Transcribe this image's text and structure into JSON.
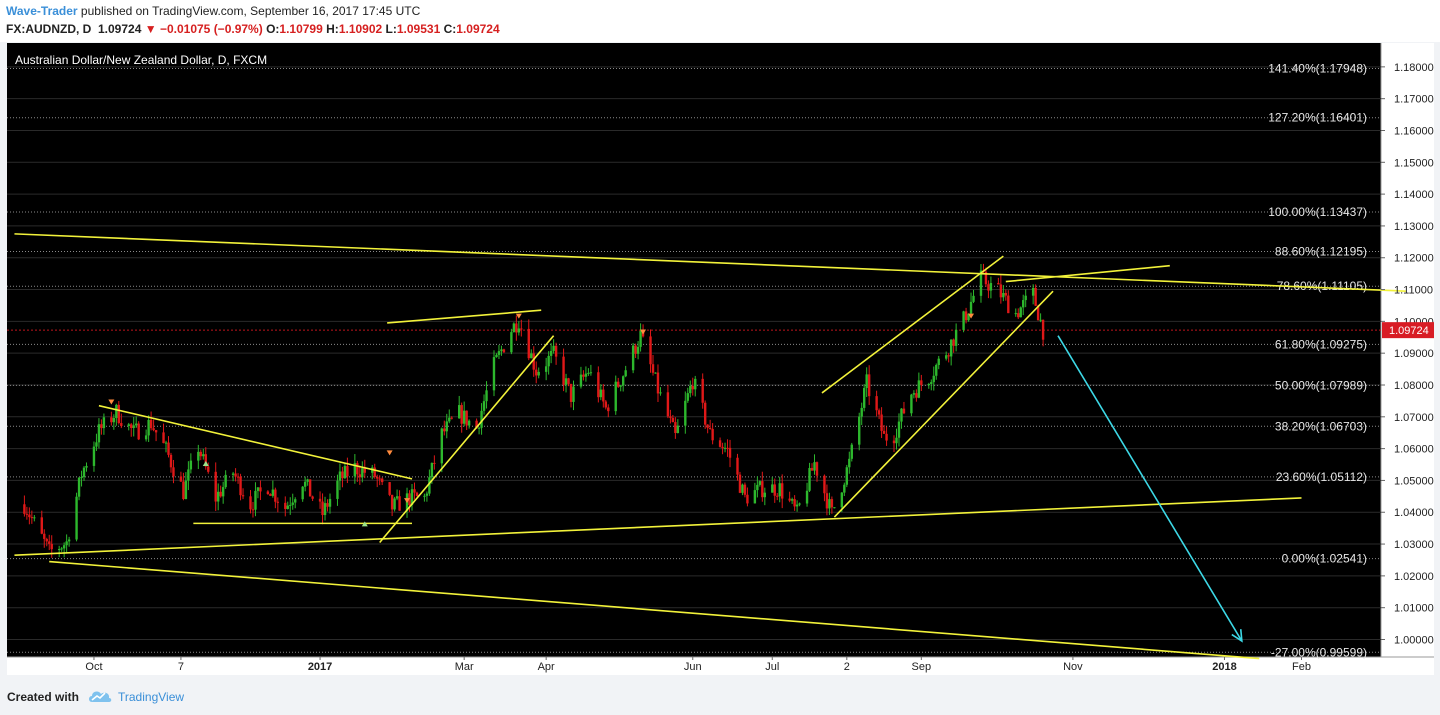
{
  "header": {
    "author": "Wave-Trader",
    "published_text": " published on TradingView.com, September 16, 2017 17:45 UTC",
    "symbol": "FX:AUDNZD, D",
    "last": "1.09724",
    "change_arrow": "▼",
    "change": "−0.01075 (−0.97%)",
    "o_label": "O:",
    "o_val": "1.10799",
    "h_label": "H:",
    "h_val": "1.10902",
    "l_label": "L:",
    "l_val": "1.09531",
    "c_label": "C:",
    "c_val": "1.09724"
  },
  "footer": {
    "created_with": "Created with",
    "brand": "TradingView",
    "logo_icon": "tradingview-cloud-icon"
  },
  "colors": {
    "background": "#000000",
    "up_candle": "#2db82d",
    "down_candle": "#e01818",
    "trendline": "#f2f23a",
    "projection": "#3dd8e6",
    "price_line": "#c0141c",
    "price_tag": "#d81c24"
  },
  "chart_data": {
    "type": "candlestick",
    "title": "Australian Dollar/New Zealand Dollar, D, FXCM",
    "last_price": 1.09724,
    "ylim": [
      0.9945,
      1.1875
    ],
    "grid": true,
    "y_ticks": [
      "1.18000",
      "1.17000",
      "1.16000",
      "1.15000",
      "1.14000",
      "1.13000",
      "1.12000",
      "1.11000",
      "1.10000",
      "1.09000",
      "1.08000",
      "1.07000",
      "1.06000",
      "1.05000",
      "1.04000",
      "1.03000",
      "1.02000",
      "1.01000",
      "1.00000"
    ],
    "x_ticks": [
      "Oct",
      "7",
      "2017",
      "Mar",
      "Apr",
      "Jun",
      "Jul",
      "2",
      "Sep",
      "Nov",
      "2018",
      "Feb"
    ],
    "fib_levels": [
      {
        "label": "141.40%(1.17948)",
        "value": 1.17948
      },
      {
        "label": "127.20%(1.16401)",
        "value": 1.16401
      },
      {
        "label": "100.00%(1.13437)",
        "value": 1.13437
      },
      {
        "label": "88.60%(1.12195)",
        "value": 1.12195
      },
      {
        "label": "78.60%(1.11105)",
        "value": 1.11105
      },
      {
        "label": "61.80%(1.09275)",
        "value": 1.09275
      },
      {
        "label": "50.00%(1.07989)",
        "value": 1.07989
      },
      {
        "label": "38.20%(1.06703)",
        "value": 1.06703
      },
      {
        "label": "23.60%(1.05112)",
        "value": 1.05112
      },
      {
        "label": "0.00%(1.02541)",
        "value": 1.02541
      },
      {
        "label": "-27.00%(0.99599)",
        "value": 0.99599
      }
    ],
    "price_path": [
      [
        "2016-09-05",
        1.0425
      ],
      [
        "2016-09-15",
        1.0275
      ],
      [
        "2016-09-22",
        1.0305
      ],
      [
        "2016-09-28",
        1.052
      ],
      [
        "2016-10-05",
        1.0655
      ],
      [
        "2016-10-12",
        1.0715
      ],
      [
        "2016-10-19",
        1.065
      ],
      [
        "2016-10-26",
        1.068
      ],
      [
        "2016-11-01",
        1.0595
      ],
      [
        "2016-11-08",
        1.0465
      ],
      [
        "2016-11-14",
        1.0605
      ],
      [
        "2016-11-21",
        1.0445
      ],
      [
        "2016-11-28",
        1.0525
      ],
      [
        "2016-12-05",
        1.0425
      ],
      [
        "2016-12-12",
        1.0485
      ],
      [
        "2016-12-19",
        1.0415
      ],
      [
        "2016-12-26",
        1.05
      ],
      [
        "2017-01-03",
        1.0395
      ],
      [
        "2017-01-10",
        1.0505
      ],
      [
        "2017-01-16",
        1.054
      ],
      [
        "2017-01-24",
        1.0515
      ],
      [
        "2017-01-31",
        1.0415
      ],
      [
        "2017-02-07",
        1.0445
      ],
      [
        "2017-02-13",
        1.0445
      ],
      [
        "2017-02-20",
        1.0645
      ],
      [
        "2017-02-27",
        1.071
      ],
      [
        "2017-03-06",
        1.0665
      ],
      [
        "2017-03-13",
        1.086
      ],
      [
        "2017-03-20",
        1.0975
      ],
      [
        "2017-03-23",
        1.1005
      ],
      [
        "2017-03-30",
        1.0845
      ],
      [
        "2017-04-06",
        1.0895
      ],
      [
        "2017-04-13",
        1.0765
      ],
      [
        "2017-04-20",
        1.0845
      ],
      [
        "2017-04-27",
        1.0725
      ],
      [
        "2017-05-04",
        1.0835
      ],
      [
        "2017-05-11",
        1.0955
      ],
      [
        "2017-05-18",
        1.0785
      ],
      [
        "2017-05-25",
        1.0635
      ],
      [
        "2017-06-01",
        1.0815
      ],
      [
        "2017-06-08",
        1.0645
      ],
      [
        "2017-06-15",
        1.0595
      ],
      [
        "2017-06-22",
        1.0445
      ],
      [
        "2017-06-29",
        1.0475
      ],
      [
        "2017-07-06",
        1.0475
      ],
      [
        "2017-07-13",
        1.0395
      ],
      [
        "2017-07-20",
        1.0555
      ],
      [
        "2017-07-27",
        1.0395
      ],
      [
        "2017-08-03",
        1.0555
      ],
      [
        "2017-08-10",
        1.0805
      ],
      [
        "2017-08-17",
        1.0635
      ],
      [
        "2017-08-21",
        1.0645
      ],
      [
        "2017-08-28",
        1.0775
      ],
      [
        "2017-09-04",
        1.0825
      ],
      [
        "2017-09-11",
        1.0905
      ],
      [
        "2017-09-18",
        1.1005
      ],
      [
        "2017-09-25",
        1.1135
      ],
      [
        "2017-10-02",
        1.1095
      ],
      [
        "2017-10-09",
        1.1025
      ],
      [
        "2017-10-16",
        1.1085
      ],
      [
        "2017-10-20",
        1.0972
      ]
    ],
    "trendlines": [
      {
        "name": "long-term-upper",
        "from": [
          "2016-09-01",
          1.1275
        ],
        "to": [
          "2018-03-15",
          1.1095
        ]
      },
      {
        "name": "rising-support",
        "from": [
          "2016-09-01",
          1.0265
        ],
        "to": [
          "2018-02-01",
          1.0445
        ]
      },
      {
        "name": "falling-lower",
        "from": [
          "2016-09-15",
          1.0245
        ],
        "to": [
          "2018-01-15",
          0.994
        ]
      },
      {
        "name": "triangle-top",
        "from": [
          "2016-10-05",
          1.0735
        ],
        "to": [
          "2017-02-08",
          1.0505
        ]
      },
      {
        "name": "triangle-base",
        "from": [
          "2016-11-12",
          1.0365
        ],
        "to": [
          "2017-02-08",
          1.0365
        ]
      },
      {
        "name": "impulse-1",
        "from": [
          "2017-01-26",
          1.0305
        ],
        "to": [
          "2017-04-06",
          1.0955
        ]
      },
      {
        "name": "channel-top-1",
        "from": [
          "2017-01-29",
          1.0995
        ],
        "to": [
          "2017-04-01",
          1.1035
        ]
      },
      {
        "name": "impulse-2-lower",
        "from": [
          "2017-07-28",
          1.0385
        ],
        "to": [
          "2017-10-24",
          1.1095
        ]
      },
      {
        "name": "impulse-2-upper",
        "from": [
          "2017-07-23",
          1.0775
        ],
        "to": [
          "2017-10-04",
          1.1205
        ]
      },
      {
        "name": "channel-top-2",
        "from": [
          "2017-10-05",
          1.1125
        ],
        "to": [
          "2017-12-10",
          1.1175
        ]
      }
    ],
    "projection_arrow": {
      "from": [
        "2017-10-26",
        1.0955
      ],
      "to": [
        "2018-01-08",
        0.9995
      ]
    },
    "markers": [
      {
        "date": "2016-10-10",
        "price": 1.0745,
        "dir": "down"
      },
      {
        "date": "2016-11-17",
        "price": 1.0555,
        "dir": "up"
      },
      {
        "date": "2017-01-20",
        "price": 1.0365,
        "dir": "up"
      },
      {
        "date": "2017-01-30",
        "price": 1.0585,
        "dir": "down"
      },
      {
        "date": "2017-02-06",
        "price": 1.0435,
        "dir": "down"
      },
      {
        "date": "2017-03-23",
        "price": 1.1015,
        "dir": "down"
      },
      {
        "date": "2017-05-12",
        "price": 1.0965,
        "dir": "down"
      },
      {
        "date": "2017-09-21",
        "price": 1.1015,
        "dir": "down"
      }
    ]
  }
}
